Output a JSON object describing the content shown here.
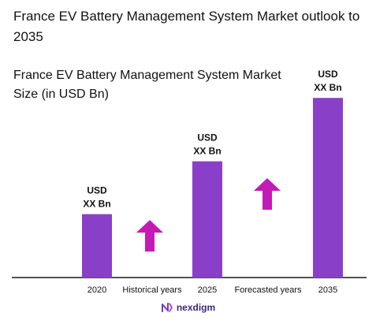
{
  "title": "France EV Battery Management System Market outlook to 2035",
  "subtitle": "France EV Battery Management System Market Size (in USD Bn)",
  "chart_data": {
    "type": "bar",
    "categories": [
      "2020",
      "2025",
      "2035"
    ],
    "values": [
      3,
      5.5,
      8.5
    ],
    "data_labels": [
      [
        "USD",
        "XX Bn"
      ],
      [
        "USD",
        "XX Bn"
      ],
      [
        "USD",
        "XX Bn"
      ]
    ],
    "between_labels": [
      "Historical years",
      "Forecasted years"
    ],
    "ylim": [
      0,
      10
    ],
    "grid": false,
    "legend": "none",
    "bar_color": "#8a3fc8",
    "arrow_color": "#c41bb6"
  },
  "brand": {
    "name": "nexdigm",
    "icon": "nexdigm-logo-icon"
  }
}
